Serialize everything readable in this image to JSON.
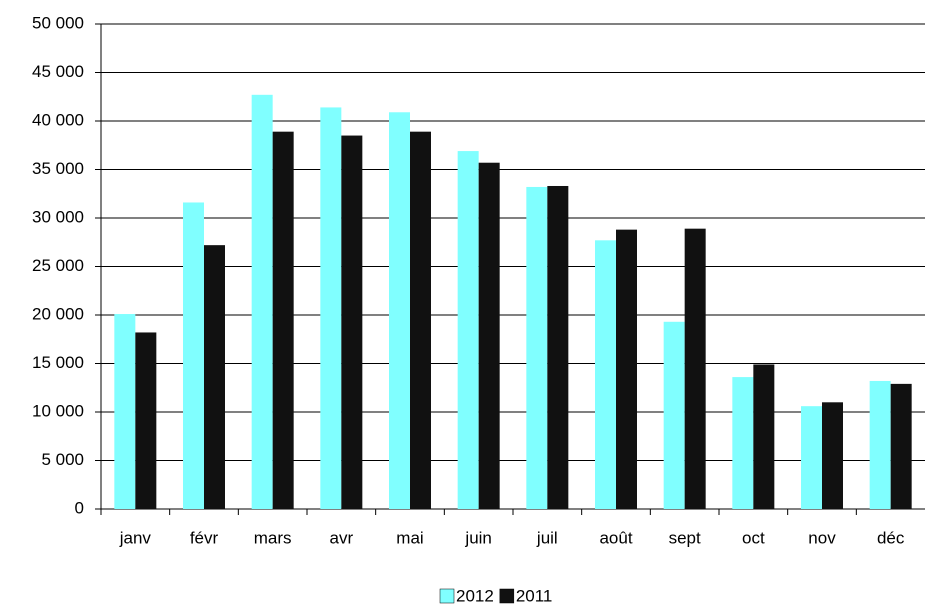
{
  "chart_data": {
    "type": "bar",
    "categories": [
      "janv",
      "févr",
      "mars",
      "avr",
      "mai",
      "juin",
      "juil",
      "août",
      "sept",
      "oct",
      "nov",
      "déc"
    ],
    "series": [
      {
        "name": "2012",
        "color": "#80ffff",
        "values": [
          20100,
          31600,
          42700,
          41400,
          40900,
          36900,
          33200,
          27700,
          19300,
          13600,
          10600,
          13200
        ]
      },
      {
        "name": "2011",
        "color": "#111111",
        "values": [
          18200,
          27200,
          38900,
          38500,
          38900,
          35700,
          33300,
          28800,
          28900,
          14900,
          11000,
          12900
        ]
      }
    ],
    "ylim": [
      0,
      50000
    ],
    "yticks": [
      0,
      {
        "value": 5000,
        "label": "5 000"
      },
      {
        "value": 10000,
        "label": "10 000"
      },
      {
        "value": 15000,
        "label": "15 000"
      },
      {
        "value": 20000,
        "label": "20 000"
      },
      {
        "value": 25000,
        "label": "25 000"
      },
      {
        "value": 30000,
        "label": "30 000"
      },
      {
        "value": 35000,
        "label": "35 000"
      },
      {
        "value": 40000,
        "label": "40 000"
      },
      {
        "value": 45000,
        "label": "45 000"
      },
      {
        "value": 50000,
        "label": "50 000"
      }
    ],
    "grid": true,
    "legend": "bottom"
  }
}
